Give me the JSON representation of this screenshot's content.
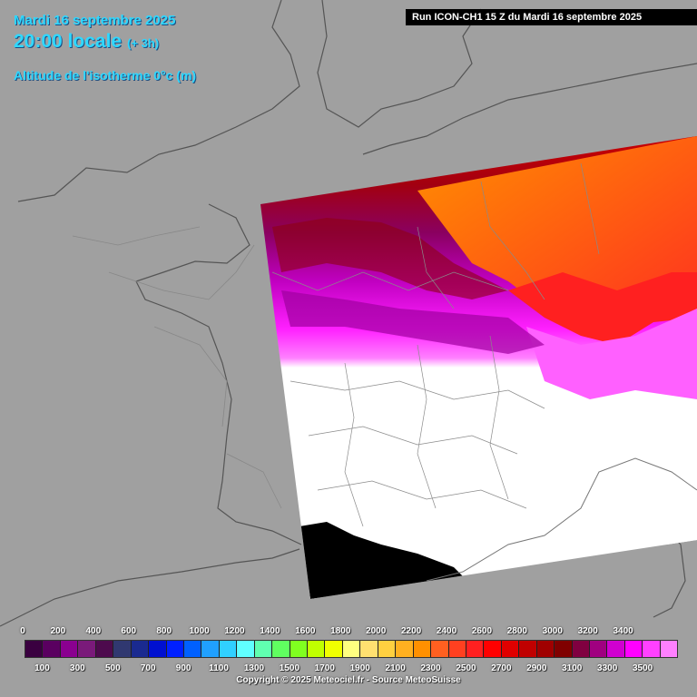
{
  "header": {
    "date": "Mardi 16 septembre 2025",
    "time": "20:00 locale",
    "offset": "(+ 3h)",
    "parameter": "Altitude de l'isotherme 0°c (m)"
  },
  "run_info": "Run ICON-CH1 15 Z du Mardi 16 septembre 2025",
  "legend": {
    "top_labels": [
      "0",
      "200",
      "400",
      "600",
      "800",
      "1000",
      "1200",
      "1400",
      "1600",
      "1800",
      "2000",
      "2200",
      "2400",
      "2600",
      "2800",
      "3000",
      "3200",
      "3400"
    ],
    "bottom_labels": [
      "100",
      "300",
      "500",
      "700",
      "900",
      "1100",
      "1300",
      "1500",
      "1700",
      "1900",
      "2100",
      "2300",
      "2500",
      "2700",
      "2900",
      "3100",
      "3300",
      "3500"
    ],
    "colors": [
      "#3a0040",
      "#5a0060",
      "#8a0090",
      "#7a1a7a",
      "#4d0a4d",
      "#303870",
      "#1a2a90",
      "#0010d0",
      "#0020ff",
      "#0060ff",
      "#20a0ff",
      "#30d0ff",
      "#60ffff",
      "#60ffb0",
      "#60ff60",
      "#80ff20",
      "#c0ff00",
      "#f0ff00",
      "#ffff80",
      "#ffe070",
      "#ffd040",
      "#ffb020",
      "#ff9000",
      "#ff6020",
      "#ff4020",
      "#ff2020",
      "#ff0000",
      "#e00000",
      "#c00000",
      "#a00000",
      "#800000",
      "#800040",
      "#a00080",
      "#d000d0",
      "#ff00ff",
      "#ff40ff",
      "#ff80ff"
    ]
  },
  "copyright": "Copyright © 2025 Meteociel.fr - Source MeteoSuisse"
}
